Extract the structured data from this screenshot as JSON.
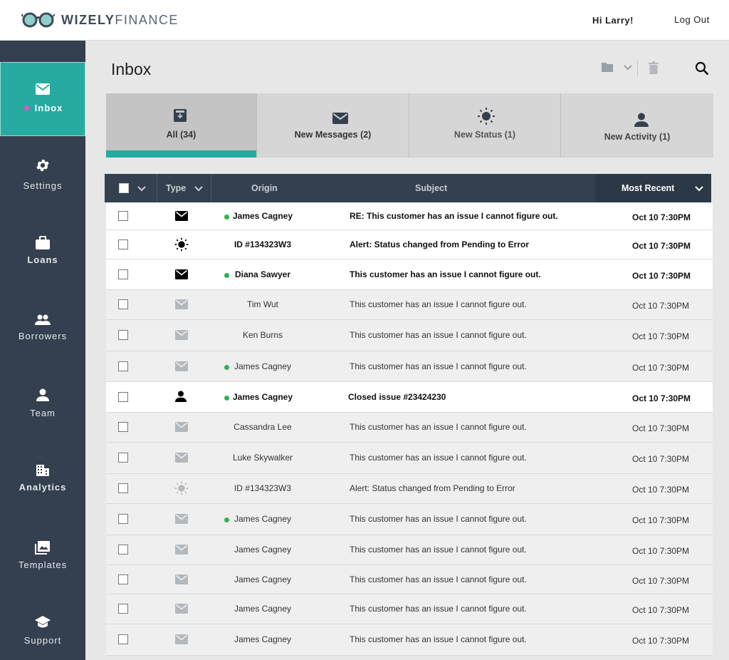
{
  "header": {
    "brand_bold": "WIZELY",
    "brand_light": "FINANCE",
    "greeting": "Hi Larry!",
    "logout_label": "Log Out"
  },
  "sidebar": {
    "items": [
      {
        "label": "Inbox",
        "icon": "envelope-icon",
        "active": true
      },
      {
        "label": "Settings",
        "icon": "gear-icon"
      },
      {
        "label": "Loans",
        "icon": "briefcase-icon"
      },
      {
        "label": "Borrowers",
        "icon": "people-icon"
      },
      {
        "label": "Team",
        "icon": "person-icon"
      },
      {
        "label": "Analytics",
        "icon": "building-icon"
      },
      {
        "label": "Templates",
        "icon": "images-icon"
      },
      {
        "label": "Support",
        "icon": "graduation-cap-icon"
      }
    ]
  },
  "main": {
    "title": "Inbox",
    "toolbar": {
      "folder_icon": "folder-icon",
      "trash_icon": "trash-icon",
      "search_icon": "search-icon"
    },
    "tabs": [
      {
        "label": "All (34)",
        "icon": "inbox-download-icon",
        "active": true
      },
      {
        "label": "New Messages (2)",
        "icon": "envelope-icon"
      },
      {
        "label": "New Status (1)",
        "icon": "sun-icon"
      },
      {
        "label": "New Activity (1)",
        "icon": "person-icon"
      }
    ],
    "table": {
      "headers": {
        "type": "Type",
        "origin": "Origin",
        "subject": "Subject",
        "sort": "Most Recent"
      },
      "rows": [
        {
          "type": "message",
          "unread": true,
          "dot": true,
          "origin": "James Cagney",
          "subject": "RE: This customer has an issue I cannot figure out.",
          "date": "Oct 10 7:30PM"
        },
        {
          "type": "status",
          "unread": true,
          "dot": false,
          "origin": "ID #134323W3",
          "subject": "Alert: Status changed from Pending to Error",
          "date": "Oct 10 7:30PM"
        },
        {
          "type": "message",
          "unread": true,
          "dot": true,
          "origin": "Diana Sawyer",
          "subject": "This customer has an issue I cannot figure out.",
          "date": "Oct 10 7:30PM"
        },
        {
          "type": "message",
          "unread": false,
          "dot": false,
          "origin": "Tim Wut",
          "subject": "This customer has an issue I cannot figure out.",
          "date": "Oct 10 7:30PM"
        },
        {
          "type": "message",
          "unread": false,
          "dot": false,
          "origin": "Ken Burns",
          "subject": "This customer has an issue I cannot figure out.",
          "date": "Oct 10 7:30PM"
        },
        {
          "type": "message",
          "unread": false,
          "dot": true,
          "origin": "James Cagney",
          "subject": "This customer has an issue I cannot figure out.",
          "date": "Oct 10 7:30PM"
        },
        {
          "type": "activity",
          "unread": true,
          "dot": true,
          "origin": "James Cagney",
          "subject": "Closed issue #23424230",
          "date": "Oct 10 7:30PM"
        },
        {
          "type": "message",
          "unread": false,
          "dot": false,
          "origin": "Cassandra Lee",
          "subject": "This customer has an issue I cannot figure out.",
          "date": "Oct 10 7:30PM"
        },
        {
          "type": "message",
          "unread": false,
          "dot": false,
          "origin": "Luke Skywalker",
          "subject": "This customer has an issue I cannot figure out.",
          "date": "Oct 10 7:30PM"
        },
        {
          "type": "status",
          "unread": false,
          "dot": false,
          "origin": "ID #134323W3",
          "subject": "Alert: Status changed from Pending to Error",
          "date": "Oct 10 7:30PM"
        },
        {
          "type": "message",
          "unread": false,
          "dot": true,
          "origin": "James Cagney",
          "subject": "This customer has an issue I cannot figure out.",
          "date": "Oct 10 7:30PM"
        },
        {
          "type": "message",
          "unread": false,
          "dot": false,
          "origin": "James Cagney",
          "subject": "This customer has an issue I cannot figure out.",
          "date": "Oct 10 7:30PM"
        },
        {
          "type": "message",
          "unread": false,
          "dot": false,
          "origin": "James Cagney",
          "subject": "This customer has an issue I cannot figure out.",
          "date": "Oct 10 7:30PM"
        },
        {
          "type": "message",
          "unread": false,
          "dot": false,
          "origin": "James Cagney",
          "subject": "This customer has an issue I cannot figure out.",
          "date": "Oct 10 7:30PM"
        },
        {
          "type": "message",
          "unread": false,
          "dot": false,
          "origin": "James Cagney",
          "subject": "This customer has an issue I cannot figure out.",
          "date": "Oct 10 7:30PM"
        }
      ]
    }
  },
  "colors": {
    "accent": "#27aba1",
    "sidebar": "#34404f",
    "unread_dot": "#2fb44a",
    "active_dot": "#e455c8"
  }
}
